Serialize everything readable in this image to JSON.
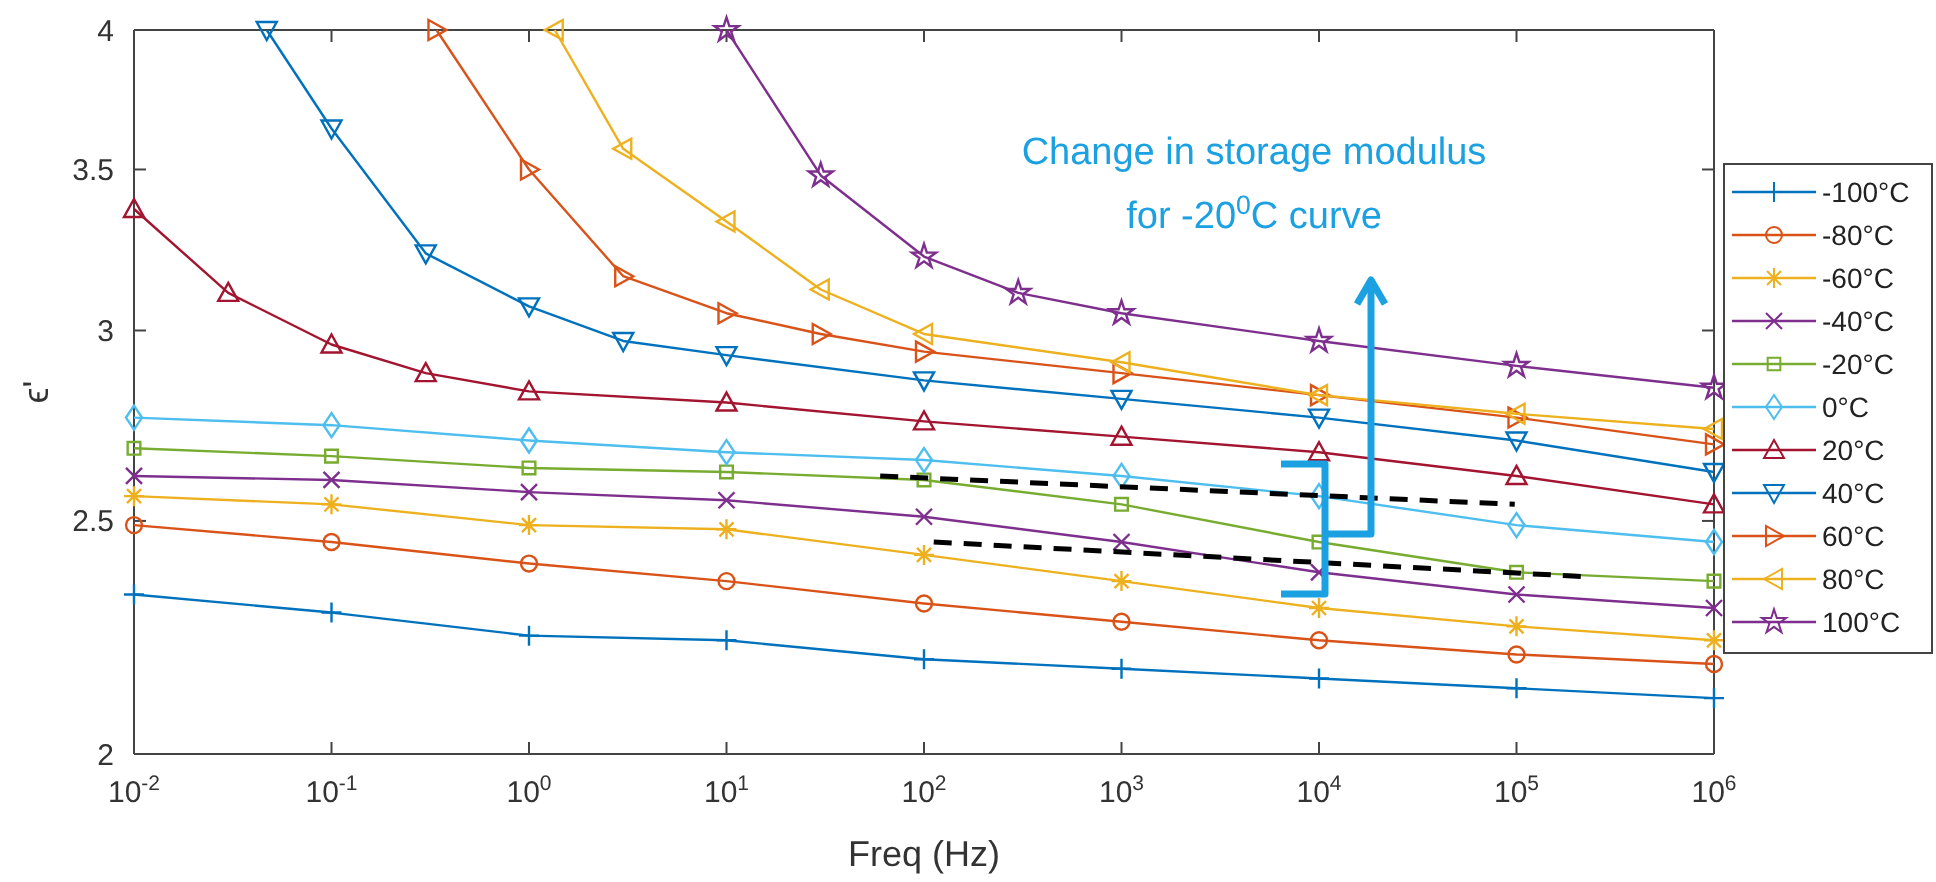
{
  "chart_data": {
    "type": "line",
    "xlabel": "Freq (Hz)",
    "ylabel": "ϵ'",
    "log": "xy",
    "xlim": [
      0.01,
      1000000
    ],
    "ylim": [
      2,
      4
    ],
    "xticks": [
      {
        "value": 0.01,
        "label": "10$^{-2}$"
      },
      {
        "value": 0.1,
        "label": "10$^{-1}$"
      },
      {
        "value": 1,
        "label": "10$^{0}$"
      },
      {
        "value": 10,
        "label": "10$^{1}$"
      },
      {
        "value": 100,
        "label": "10$^{2}$"
      },
      {
        "value": 1000,
        "label": "10$^{3}$"
      },
      {
        "value": 10000,
        "label": "10$^{4}$"
      },
      {
        "value": 100000,
        "label": "10$^{5}$"
      },
      {
        "value": 1000000,
        "label": "10$^{6}$"
      }
    ],
    "yticks": [
      2,
      2.5,
      3,
      3.5,
      4
    ],
    "grid": false,
    "legend": "right",
    "annotations": [
      {
        "text": "Change in storage modulus\nfor -20$^{0}$C curve",
        "x": 10000,
        "y": 2.45
      }
    ],
    "series": [
      {
        "name": "-100°C",
        "color": "#0072bd",
        "marker": "plus",
        "x": [
          0.01,
          0.1,
          1,
          10,
          100,
          1000,
          10000,
          100000,
          1000000
        ],
        "values": [
          2.33,
          2.29,
          2.24,
          2.23,
          2.19,
          2.17,
          2.15,
          2.13,
          2.11
        ]
      },
      {
        "name": "-80°C",
        "color": "#d95319",
        "marker": "circle",
        "x": [
          0.01,
          0.1,
          1,
          10,
          100,
          1000,
          10000,
          100000,
          1000000
        ],
        "values": [
          2.49,
          2.45,
          2.4,
          2.36,
          2.31,
          2.27,
          2.23,
          2.2,
          2.18
        ]
      },
      {
        "name": "-60°C",
        "color": "#edb120",
        "marker": "cross",
        "x": [
          0.01,
          0.1,
          1,
          10,
          100,
          1000,
          10000,
          100000,
          1000000
        ],
        "values": [
          2.56,
          2.54,
          2.49,
          2.48,
          2.42,
          2.36,
          2.3,
          2.26,
          2.23
        ]
      },
      {
        "name": "-40°C",
        "color": "#7e2f8e",
        "marker": "x",
        "x": [
          0.01,
          0.1,
          1,
          10,
          100,
          1000,
          10000,
          100000,
          1000000
        ],
        "values": [
          2.61,
          2.6,
          2.57,
          2.55,
          2.51,
          2.45,
          2.38,
          2.33,
          2.3
        ]
      },
      {
        "name": "-20°C",
        "color": "#77ac30",
        "marker": "square",
        "x": [
          0.01,
          0.1,
          1,
          10,
          100,
          1000,
          10000,
          100000,
          1000000
        ],
        "values": [
          2.68,
          2.66,
          2.63,
          2.62,
          2.6,
          2.54,
          2.45,
          2.38,
          2.36
        ]
      },
      {
        "name": "0°C",
        "color": "#4dbeee",
        "marker": "diamond",
        "x": [
          0.01,
          0.1,
          1,
          10,
          100,
          1000,
          10000,
          100000,
          1000000
        ],
        "values": [
          2.76,
          2.74,
          2.7,
          2.67,
          2.65,
          2.61,
          2.56,
          2.49,
          2.45
        ]
      },
      {
        "name": "20°C",
        "color": "#a2142f",
        "marker": "triangle",
        "x": [
          0.01,
          0.03,
          0.1,
          0.3,
          1,
          10,
          100,
          1000,
          10000,
          100000,
          1000000
        ],
        "values": [
          3.37,
          3.11,
          2.96,
          2.88,
          2.83,
          2.8,
          2.75,
          2.71,
          2.67,
          2.61,
          2.54
        ]
      },
      {
        "name": "40°C",
        "color": "#0072bd",
        "marker": "triangle-down",
        "x": [
          0.047,
          0.1,
          0.3,
          1,
          3,
          10,
          100,
          1000,
          10000,
          100000,
          1000000
        ],
        "values": [
          4,
          3.64,
          3.23,
          3.07,
          2.97,
          2.93,
          2.86,
          2.81,
          2.76,
          2.7,
          2.62
        ]
      },
      {
        "name": "60°C",
        "color": "#d95319",
        "marker": "triangle-right",
        "x": [
          0.34,
          1,
          3,
          10,
          30,
          100,
          1000,
          10000,
          100000,
          1000000
        ],
        "values": [
          4,
          3.5,
          3.16,
          3.05,
          2.99,
          2.94,
          2.88,
          2.82,
          2.76,
          2.69
        ]
      },
      {
        "name": "80°C",
        "color": "#edb120",
        "marker": "triangle-left",
        "x": [
          1.35,
          3,
          10,
          30,
          100,
          1000,
          10000,
          100000,
          1000000
        ],
        "values": [
          4,
          3.57,
          3.33,
          3.12,
          2.99,
          2.91,
          2.82,
          2.77,
          2.73
        ]
      },
      {
        "name": "100°C",
        "color": "#7e2f8e",
        "marker": "star",
        "x": [
          10,
          30,
          100,
          300,
          1000,
          10000,
          100000,
          1000000
        ],
        "values": [
          4,
          3.48,
          3.22,
          3.11,
          3.05,
          2.97,
          2.9,
          2.84
        ]
      },
      {
        "color": "#000000",
        "line_style": "dashed",
        "marker": "none",
        "x": [
          60,
          98000
        ],
        "values": [
          2.61,
          2.54
        ]
      },
      {
        "color": "#000000",
        "line_style": "dashed",
        "marker": "none",
        "x": [
          112,
          224000
        ],
        "values": [
          2.45,
          2.37
        ]
      }
    ]
  }
}
